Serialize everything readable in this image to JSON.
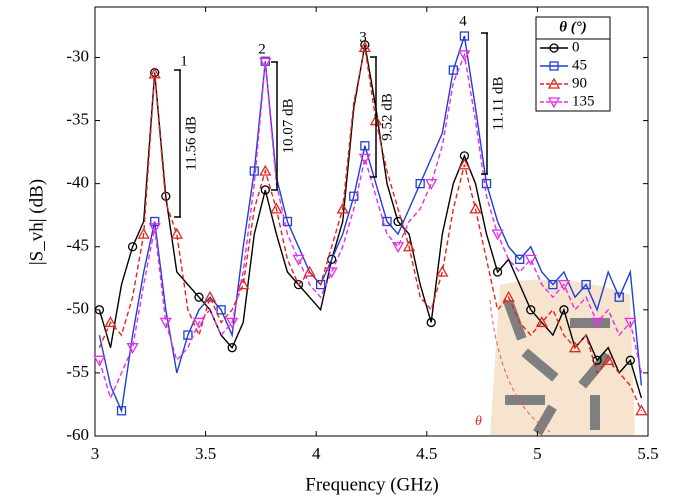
{
  "chart_data": {
    "type": "line",
    "xlabel": "Frequency (GHz)",
    "ylabel": "|S_vh| (dB)",
    "xlim": [
      3,
      5.5
    ],
    "ylim": [
      -60,
      -26
    ],
    "xticks": [
      3,
      3.5,
      4,
      4.5,
      5,
      5.5
    ],
    "yticks": [
      -60,
      -55,
      -50,
      -45,
      -40,
      -35,
      -30
    ],
    "legend_title": "θ (°)",
    "legend_position": "upper right",
    "x": [
      3.02,
      3.07,
      3.12,
      3.17,
      3.22,
      3.27,
      3.32,
      3.37,
      3.42,
      3.47,
      3.52,
      3.57,
      3.62,
      3.67,
      3.72,
      3.77,
      3.82,
      3.87,
      3.92,
      3.97,
      4.02,
      4.07,
      4.12,
      4.17,
      4.22,
      4.27,
      4.32,
      4.37,
      4.42,
      4.47,
      4.52,
      4.57,
      4.62,
      4.67,
      4.72,
      4.77,
      4.82,
      4.87,
      4.92,
      4.97,
      5.02,
      5.07,
      5.12,
      5.17,
      5.22,
      5.27,
      5.32,
      5.37,
      5.42,
      5.47
    ],
    "series": [
      {
        "name": "0",
        "color": "#000000",
        "marker": "circle",
        "dashed": false,
        "values": [
          -50,
          -53,
          -48,
          -45,
          -43,
          -31.2,
          -41,
          -47,
          -48,
          -49,
          -50,
          -52,
          -53,
          -51,
          -44,
          -40.5,
          -44,
          -47,
          -48,
          -49,
          -50,
          -46,
          -43,
          -34,
          -29,
          -34,
          -40,
          -43,
          -44,
          -48,
          -51,
          -44,
          -40,
          -37.8,
          -40,
          -44,
          -47,
          -46,
          -48,
          -50,
          -51,
          -52,
          -50,
          -53,
          -52,
          -54,
          -53,
          -55,
          -54,
          -57
        ]
      },
      {
        "name": "45",
        "color": "#1f3fd6",
        "marker": "square",
        "dashed": false,
        "values": [
          -52,
          -56,
          -58,
          -52,
          -47,
          -43,
          -50,
          -55,
          -52,
          -50,
          -49,
          -50,
          -52,
          -45,
          -39,
          -30.3,
          -39.5,
          -43,
          -45,
          -47,
          -48,
          -46,
          -44,
          -41,
          -37,
          -40,
          -43,
          -44,
          -42,
          -40,
          -38,
          -36,
          -31,
          -28.3,
          -34,
          -40,
          -43,
          -45,
          -46,
          -45,
          -47,
          -48,
          -47,
          -49,
          -48,
          -50,
          -47,
          -49,
          -47,
          -56
        ]
      },
      {
        "name": "90",
        "color": "#e0261f",
        "marker": "triangle",
        "dashed": true,
        "values": [
          -53,
          -51,
          -52,
          -49,
          -44,
          -31.3,
          -41.5,
          -44,
          -50,
          -52,
          -49,
          -51,
          -50,
          -48,
          -42,
          -39,
          -42,
          -46,
          -48,
          -47,
          -48,
          -45,
          -42,
          -33.6,
          -29.2,
          -35,
          -39,
          -42,
          -45,
          -49,
          -50,
          -47,
          -42,
          -38.5,
          -42,
          -46,
          -50,
          -49,
          -51,
          -52,
          -51,
          -50,
          -52,
          -53,
          -52,
          -55,
          -54,
          -55,
          -56,
          -58
        ]
      },
      {
        "name": "135",
        "color": "#e62ee6",
        "marker": "triangle-down",
        "dashed": true,
        "values": [
          -54,
          -57,
          -55,
          -53,
          -48,
          -43.5,
          -51,
          -54,
          -53,
          -51,
          -50,
          -52,
          -51,
          -47,
          -40,
          -30.4,
          -40,
          -44,
          -46,
          -48,
          -49,
          -47,
          -45,
          -42,
          -38,
          -41,
          -44,
          -45,
          -43,
          -42,
          -40,
          -37,
          -32,
          -29.8,
          -35,
          -41,
          -44,
          -46,
          -47,
          -46,
          -48,
          -49,
          -48,
          -50,
          -49,
          -51,
          -50,
          -52,
          -51,
          -55
        ]
      }
    ],
    "annotations": [
      {
        "text": "1"
      },
      {
        "text": "2"
      },
      {
        "text": "3"
      },
      {
        "text": "4"
      },
      {
        "text": "11.56 dB"
      },
      {
        "text": "10.07 dB"
      },
      {
        "text": "9.52 dB"
      },
      {
        "text": "11.11 dB"
      }
    ],
    "inset_label": "θ"
  }
}
